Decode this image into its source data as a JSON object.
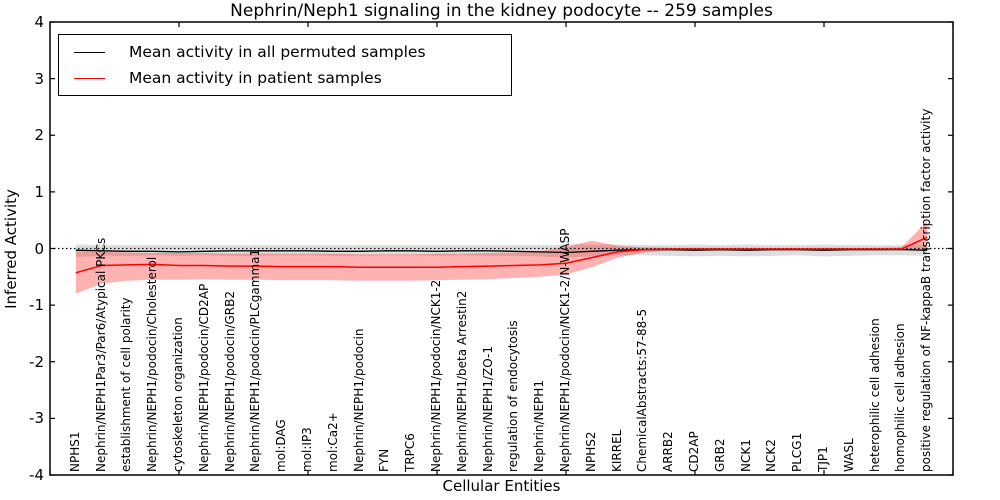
{
  "title": "Nephrin/Neph1 signaling in the kidney podocyte -- 259 samples",
  "legend": {
    "items": [
      {
        "label": "Mean activity in all permuted samples",
        "color": "#000000"
      },
      {
        "label": "Mean activity in patient samples",
        "color": "#ff0000"
      }
    ]
  },
  "axes": {
    "x_label": "Cellular Entities",
    "y_label": "Inferred Activity",
    "y_ticks": [
      "4",
      "3",
      "2",
      "1",
      "0",
      "-1",
      "-2",
      "-3",
      "-4"
    ],
    "y_min": -4,
    "y_max": 4,
    "x_min": 0,
    "x_max": 35,
    "x_major_ticks": [
      0,
      5,
      10,
      15,
      20,
      25,
      30,
      35
    ]
  },
  "chart_data": {
    "type": "line",
    "title": "Nephrin/Neph1 signaling in the kidney podocyte -- 259 samples",
    "xlabel": "Cellular Entities",
    "ylabel": "Inferred Activity",
    "ylim": [
      -4,
      4
    ],
    "grid": false,
    "legend_position": "upper left",
    "zero_line": {
      "style": "dotted",
      "y": 0,
      "color": "#000000"
    },
    "categories": [
      "NPHS1",
      "Nephrin/NEPH1Par3/Par6/Atypical PKCs",
      "establishment of cell polarity",
      "Nephrin/NEPH1/podocin/Cholesterol",
      "cytoskeleton organization",
      "Nephrin/NEPH1/podocin/CD2AP",
      "Nephrin/NEPH1/podocin/GRB2",
      "Nephrin/NEPH1/podocin/PLCgamma1",
      "mol:DAG",
      "mol:IP3",
      "mol:Ca2+",
      "Nephrin/NEPH1/podocin",
      "FYN",
      "TRPC6",
      "Nephrin/NEPH1/podocin/NCK1-2",
      "Nephrin/NEPH1/beta Arrestin2",
      "Nephrin/NEPH1/ZO-1",
      "regulation of endocytosis",
      "Nephrin/NEPH1",
      "Nephrin/NEPH1/podocin/NCK1-2/N-WASP",
      "NPHS2",
      "KIRREL",
      "ChemicalAbstracts:57-88-5",
      "ARRB2",
      "CD2AP",
      "GRB2",
      "NCK1",
      "NCK2",
      "PLCG1",
      "TJP1",
      "WASL",
      "heterophilic cell adhesion",
      "homophilic cell adhesion",
      "positive regulation of NF-kappaB transcription factor activity"
    ],
    "series": [
      {
        "name": "Mean activity in all permuted samples",
        "color": "#000000",
        "width": 1.3,
        "values": [
          -0.03,
          -0.04,
          -0.05,
          -0.05,
          -0.06,
          -0.05,
          -0.04,
          -0.04,
          -0.04,
          -0.04,
          -0.05,
          -0.05,
          -0.04,
          -0.04,
          -0.05,
          -0.04,
          -0.04,
          -0.05,
          -0.06,
          -0.07,
          -0.05,
          -0.03,
          -0.02,
          -0.02,
          -0.03,
          -0.02,
          -0.03,
          -0.02,
          -0.02,
          -0.03,
          -0.02,
          -0.02,
          -0.02,
          -0.03
        ]
      },
      {
        "name": "Mean activity in patient samples",
        "color": "#ff0000",
        "width": 1.5,
        "values": [
          -0.43,
          -0.3,
          -0.29,
          -0.28,
          -0.3,
          -0.3,
          -0.31,
          -0.31,
          -0.32,
          -0.32,
          -0.32,
          -0.33,
          -0.33,
          -0.33,
          -0.33,
          -0.32,
          -0.31,
          -0.3,
          -0.29,
          -0.26,
          -0.16,
          -0.06,
          -0.02,
          -0.01,
          -0.01,
          -0.01,
          -0.01,
          -0.01,
          -0.01,
          -0.01,
          -0.01,
          -0.01,
          -0.01,
          0.2
        ]
      }
    ],
    "bands": [
      {
        "name": "permuted samples range",
        "color": "#000000",
        "opacity": 0.13,
        "upper": [
          0.07,
          0.06,
          0.06,
          0.06,
          0.06,
          0.06,
          0.06,
          0.06,
          0.06,
          0.06,
          0.06,
          0.06,
          0.06,
          0.06,
          0.06,
          0.06,
          0.06,
          0.06,
          0.06,
          0.07,
          0.07,
          0.07,
          0.06,
          0.06,
          0.07,
          0.06,
          0.07,
          0.06,
          0.06,
          0.07,
          0.06,
          0.06,
          0.06,
          0.07
        ],
        "lower": [
          -0.15,
          -0.13,
          -0.13,
          -0.12,
          -0.13,
          -0.12,
          -0.13,
          -0.13,
          -0.12,
          -0.12,
          -0.13,
          -0.13,
          -0.12,
          -0.12,
          -0.13,
          -0.12,
          -0.13,
          -0.13,
          -0.14,
          -0.16,
          -0.14,
          -0.12,
          -0.12,
          -0.13,
          -0.14,
          -0.13,
          -0.14,
          -0.13,
          -0.12,
          -0.14,
          -0.13,
          -0.12,
          -0.12,
          -0.13
        ]
      },
      {
        "name": "patient samples range",
        "color": "#ff0000",
        "opacity": 0.3,
        "upper": [
          -0.05,
          -0.06,
          -0.07,
          -0.08,
          -0.08,
          -0.08,
          -0.09,
          -0.09,
          -0.09,
          -0.09,
          -0.09,
          -0.1,
          -0.1,
          -0.1,
          -0.09,
          -0.09,
          -0.08,
          -0.07,
          -0.05,
          0.03,
          0.14,
          0.05,
          0.02,
          0.01,
          0.01,
          0.01,
          0.01,
          0.01,
          0.01,
          0.01,
          0.01,
          0.01,
          0.02,
          0.48
        ],
        "lower": [
          -0.8,
          -0.62,
          -0.57,
          -0.55,
          -0.55,
          -0.54,
          -0.55,
          -0.55,
          -0.56,
          -0.56,
          -0.56,
          -0.57,
          -0.57,
          -0.57,
          -0.56,
          -0.55,
          -0.54,
          -0.52,
          -0.5,
          -0.46,
          -0.33,
          -0.16,
          -0.07,
          -0.04,
          -0.04,
          -0.04,
          -0.04,
          -0.04,
          -0.04,
          -0.04,
          -0.04,
          -0.04,
          -0.03,
          0.0
        ]
      }
    ]
  }
}
